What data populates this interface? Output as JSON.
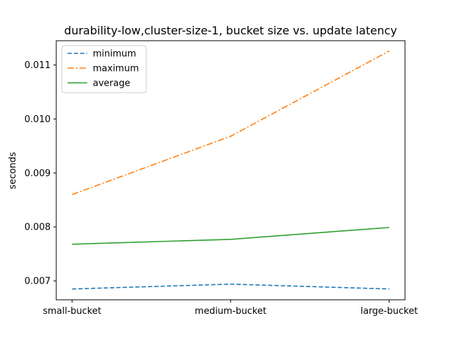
{
  "chart_data": {
    "type": "line",
    "title": "durability-low,cluster-size-1, bucket size vs. update latency",
    "xlabel": "",
    "ylabel": "seconds",
    "categories": [
      "small-bucket",
      "medium-bucket",
      "large-bucket"
    ],
    "ylim": [
      0.00665,
      0.01145
    ],
    "yticks": [
      "0.007",
      "0.008",
      "0.009",
      "0.010",
      "0.011"
    ],
    "grid": false,
    "legend": "top-left",
    "series": [
      {
        "name": "minimum",
        "values": [
          0.00685,
          0.00694,
          0.00685
        ],
        "color": "#1f77b4",
        "style": "dashed"
      },
      {
        "name": "maximum",
        "values": [
          0.0086,
          0.00968,
          0.01126
        ],
        "color": "#ff7f0e",
        "style": "dashdot"
      },
      {
        "name": "average",
        "values": [
          0.00768,
          0.00777,
          0.00799
        ],
        "color": "#2ca02c",
        "style": "solid"
      }
    ]
  }
}
